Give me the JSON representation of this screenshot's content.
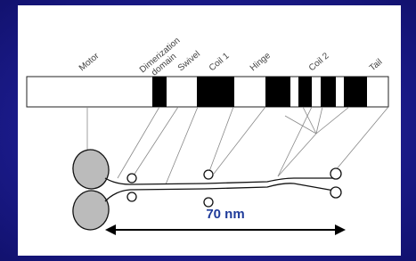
{
  "labels": [
    [
      "Motor"
    ],
    [
      "Dimerization",
      "domain"
    ],
    [
      "Swivel"
    ],
    [
      "Coil 1"
    ],
    [
      "Hinge"
    ],
    [
      "Coil 2"
    ],
    [
      "Tail"
    ]
  ],
  "scale_label": "70 nm"
}
